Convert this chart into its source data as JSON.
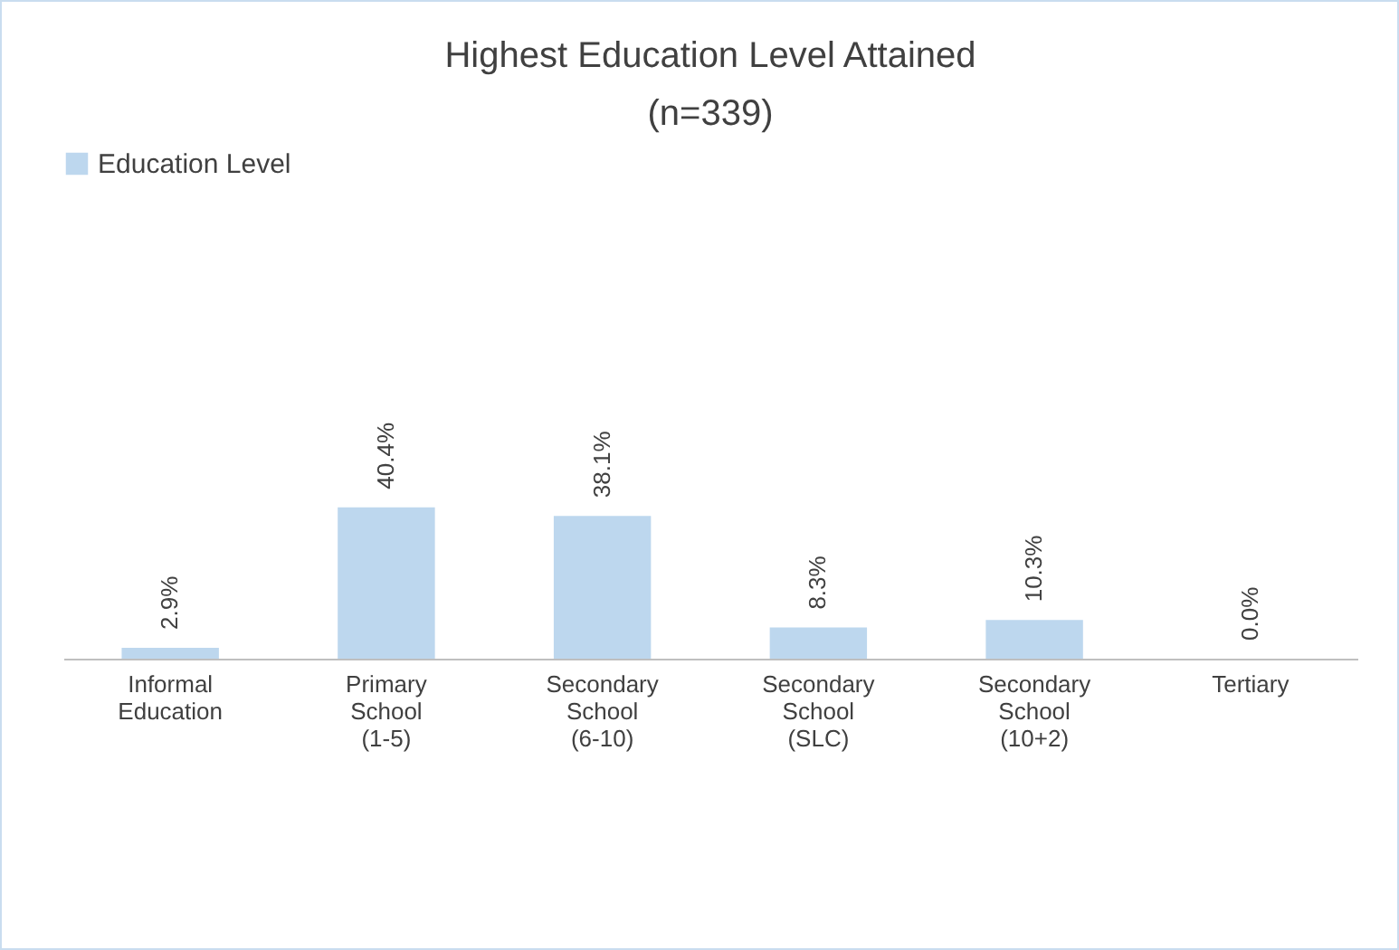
{
  "chart_data": {
    "type": "bar",
    "title": "Highest Education Level Attained\n(n=339)",
    "categories": [
      "Informal Education",
      "Primary School (1-5)",
      "Secondary School (6-10)",
      "Secondary School (SLC)",
      "Secondary School (10+2)",
      "Tertiary"
    ],
    "series": [
      {
        "name": "Education Level",
        "color": "#bdd7ee",
        "values": [
          2.9,
          40.4,
          38.1,
          8.3,
          10.3,
          0.0
        ],
        "value_labels": [
          "2.9%",
          "40.4%",
          "38.1%",
          "8.3%",
          "10.3%",
          "0.0%"
        ]
      }
    ],
    "legend": "top",
    "grid": false
  }
}
